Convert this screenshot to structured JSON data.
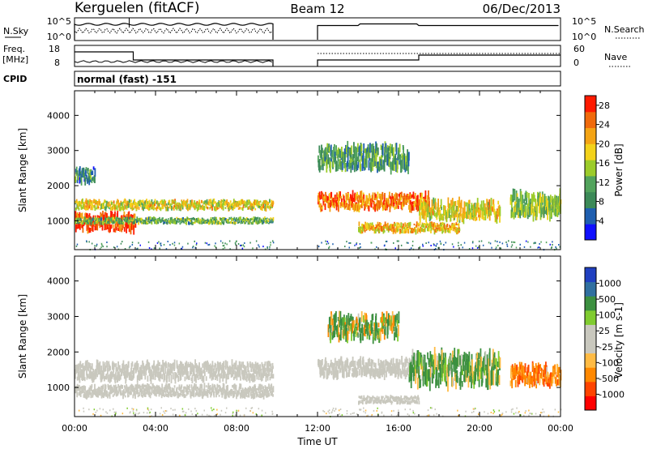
{
  "header": {
    "station": "Kerguelen (fitACF)",
    "beam": "Beam 12",
    "date": "06/Dec/2013"
  },
  "strip_nsky": {
    "left_label": "N.Sky",
    "right_label": "N.Search",
    "left_ticks": [
      "10^5",
      "10^0"
    ],
    "right_ticks": [
      "10^5",
      "10^0"
    ]
  },
  "strip_freq": {
    "left_label_top": "Freq.",
    "left_label_bottom": "[MHz]",
    "right_label": "Nave",
    "left_ticks": [
      "18",
      "8"
    ],
    "right_ticks": [
      "60",
      "0"
    ]
  },
  "cpid": {
    "label": "CPID",
    "mode": "normal (fast) -151"
  },
  "colors": {
    "power_scale": [
      "#1010ff",
      "#1f5fb0",
      "#3c8a58",
      "#52a35c",
      "#9ccc2a",
      "#f3d21a",
      "#f4a414",
      "#f06a0c",
      "#ff1a00"
    ],
    "velocity_scale": [
      "#ff0000",
      "#ff4400",
      "#ff8800",
      "#ffbb44",
      "#c9c8be",
      "#c9c8be",
      "#80cc30",
      "#3c9040",
      "#3070a0",
      "#2040c0"
    ],
    "ground_scatter": "#c9c8be"
  },
  "chart_data": [
    {
      "type": "heatmap",
      "name": "power-panel",
      "xlabel": "",
      "ylabel": "Slant Range [km]",
      "x_ticks": [
        "00:00",
        "04:00",
        "08:00",
        "12:00",
        "16:00",
        "20:00",
        "00:00"
      ],
      "x_range_hours": [
        0,
        24
      ],
      "y_ticks": [
        1000,
        2000,
        3000,
        4000
      ],
      "ylim": [
        180,
        4700
      ],
      "colorbar": {
        "label": "Power [dB]",
        "ticks": [
          4,
          8,
          12,
          16,
          20,
          24,
          28
        ],
        "range": [
          0,
          30
        ]
      },
      "data_gaps_hours": [
        [
          9.8,
          12.0
        ]
      ],
      "echo_bands": [
        {
          "t0": 0.0,
          "t1": 3.0,
          "r_center": 950,
          "r_halfwidth": 220,
          "value": 27
        },
        {
          "t0": 0.0,
          "t1": 9.8,
          "r_center": 1450,
          "r_halfwidth": 120,
          "value": 18
        },
        {
          "t0": 0.0,
          "t1": 9.8,
          "r_center": 1000,
          "r_halfwidth": 80,
          "value": 12
        },
        {
          "t0": 0.0,
          "t1": 1.0,
          "r_center": 2300,
          "r_halfwidth": 200,
          "value": 9
        },
        {
          "t0": 12.0,
          "t1": 17.5,
          "r_center": 1550,
          "r_halfwidth": 200,
          "value": 24
        },
        {
          "t0": 12.0,
          "t1": 16.5,
          "r_center": 2800,
          "r_halfwidth": 300,
          "value": 10
        },
        {
          "t0": 14.0,
          "t1": 19.0,
          "r_center": 800,
          "r_halfwidth": 120,
          "value": 20
        },
        {
          "t0": 17.0,
          "t1": 21.0,
          "r_center": 1300,
          "r_halfwidth": 250,
          "value": 18
        },
        {
          "t0": 21.5,
          "t1": 24.0,
          "r_center": 1450,
          "r_halfwidth": 300,
          "value": 14
        }
      ]
    },
    {
      "type": "heatmap",
      "name": "velocity-panel",
      "xlabel": "Time UT",
      "ylabel": "Slant Range [km]",
      "x_ticks": [
        "00:00",
        "04:00",
        "08:00",
        "12:00",
        "16:00",
        "20:00",
        "00:00"
      ],
      "x_range_hours": [
        0,
        24
      ],
      "y_ticks": [
        1000,
        2000,
        3000,
        4000
      ],
      "ylim": [
        180,
        4700
      ],
      "colorbar": {
        "label": "Velocity [m s-1]",
        "ticks": [
          1000,
          500,
          100,
          25,
          -25,
          -100,
          -500,
          -1000
        ]
      },
      "data_gaps_hours": [
        [
          9.8,
          12.0
        ]
      ],
      "echo_bands": [
        {
          "t0": 0.0,
          "t1": 9.8,
          "r_center": 1450,
          "r_halfwidth": 220,
          "value": 0
        },
        {
          "t0": 0.0,
          "t1": 9.8,
          "r_center": 900,
          "r_halfwidth": 150,
          "value": 0
        },
        {
          "t0": 12.0,
          "t1": 17.0,
          "r_center": 1550,
          "r_halfwidth": 220,
          "value": 0
        },
        {
          "t0": 14.0,
          "t1": 17.0,
          "r_center": 650,
          "r_halfwidth": 90,
          "value": 0
        },
        {
          "t0": 16.5,
          "t1": 21.0,
          "r_center": 1500,
          "r_halfwidth": 400,
          "value": 200
        },
        {
          "t0": 21.5,
          "t1": 24.0,
          "r_center": 1350,
          "r_halfwidth": 250,
          "value": -300
        },
        {
          "t0": 12.5,
          "t1": 16.0,
          "r_center": 2700,
          "r_halfwidth": 300,
          "value": 100
        }
      ]
    }
  ]
}
